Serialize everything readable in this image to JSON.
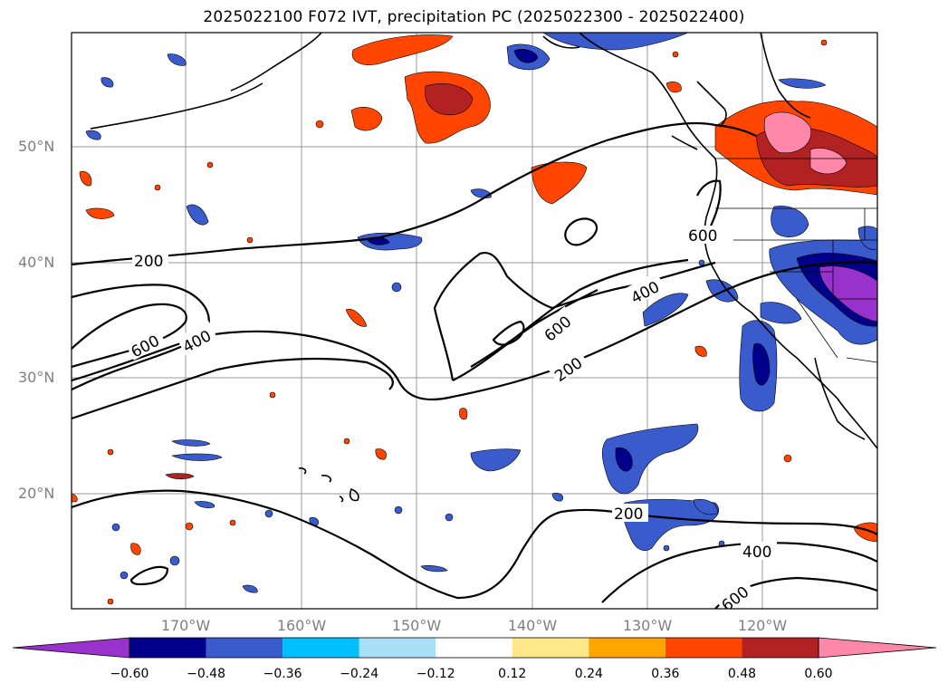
{
  "title": "2025022100 F072 IVT, precipitation PC (2025022300 - 2025022400)",
  "map": {
    "lat_ticks": [
      "50°N",
      "40°N",
      "30°N",
      "20°N"
    ],
    "lon_ticks": [
      "170°W",
      "160°W",
      "150°W",
      "140°W",
      "130°W",
      "120°W"
    ],
    "contour_labels": [
      "200",
      "600",
      "400",
      "600",
      "400",
      "600",
      "200",
      "200",
      "400",
      "600"
    ],
    "grid": true
  },
  "colorbar": {
    "labels": [
      "−0.60",
      "−0.48",
      "−0.36",
      "−0.24",
      "−0.12",
      "0.12",
      "0.24",
      "0.36",
      "0.48",
      "0.60"
    ],
    "colors": [
      "#9932cc",
      "#00008b",
      "#3a5bcc",
      "#00bfff",
      "#aadff8",
      "#ffffff",
      "#ffe88a",
      "#ffa500",
      "#ff4500",
      "#b22222",
      "#ff88aa"
    ]
  }
}
